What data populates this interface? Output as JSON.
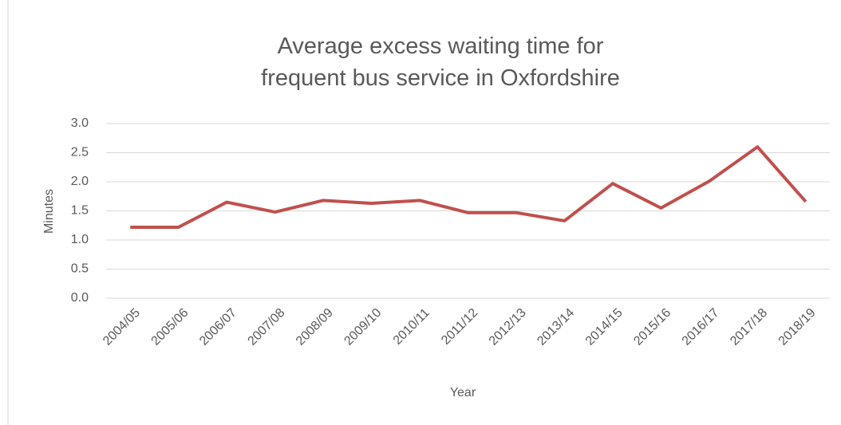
{
  "chart_data": {
    "type": "line",
    "title": "Average excess waiting time for frequent bus service in Oxfordshire",
    "x_label": "Year",
    "y_label": "Minutes",
    "categories": [
      "2004/05",
      "2005/06",
      "2006/07",
      "2007/08",
      "2008/09",
      "2009/10",
      "2010/11",
      "2011/12",
      "2012/13",
      "2013/14",
      "2014/15",
      "2015/16",
      "2016/17",
      "2017/18",
      "2018/19"
    ],
    "series": [
      {
        "name": "Average excess waiting time",
        "color": "#c0504d",
        "values": [
          1.22,
          1.22,
          1.65,
          1.48,
          1.68,
          1.63,
          1.68,
          1.47,
          1.47,
          1.33,
          1.97,
          1.55,
          2.01,
          2.6,
          1.66
        ]
      }
    ],
    "ylim": [
      0,
      3
    ],
    "yticks": [
      {
        "value": 0,
        "label": "0.0"
      },
      0.5,
      {
        "value": 1,
        "label": "1.0"
      },
      1.5,
      {
        "value": 2,
        "label": "2.0"
      },
      2.5,
      {
        "value": 3,
        "label": "3.0"
      }
    ],
    "grid": true
  }
}
